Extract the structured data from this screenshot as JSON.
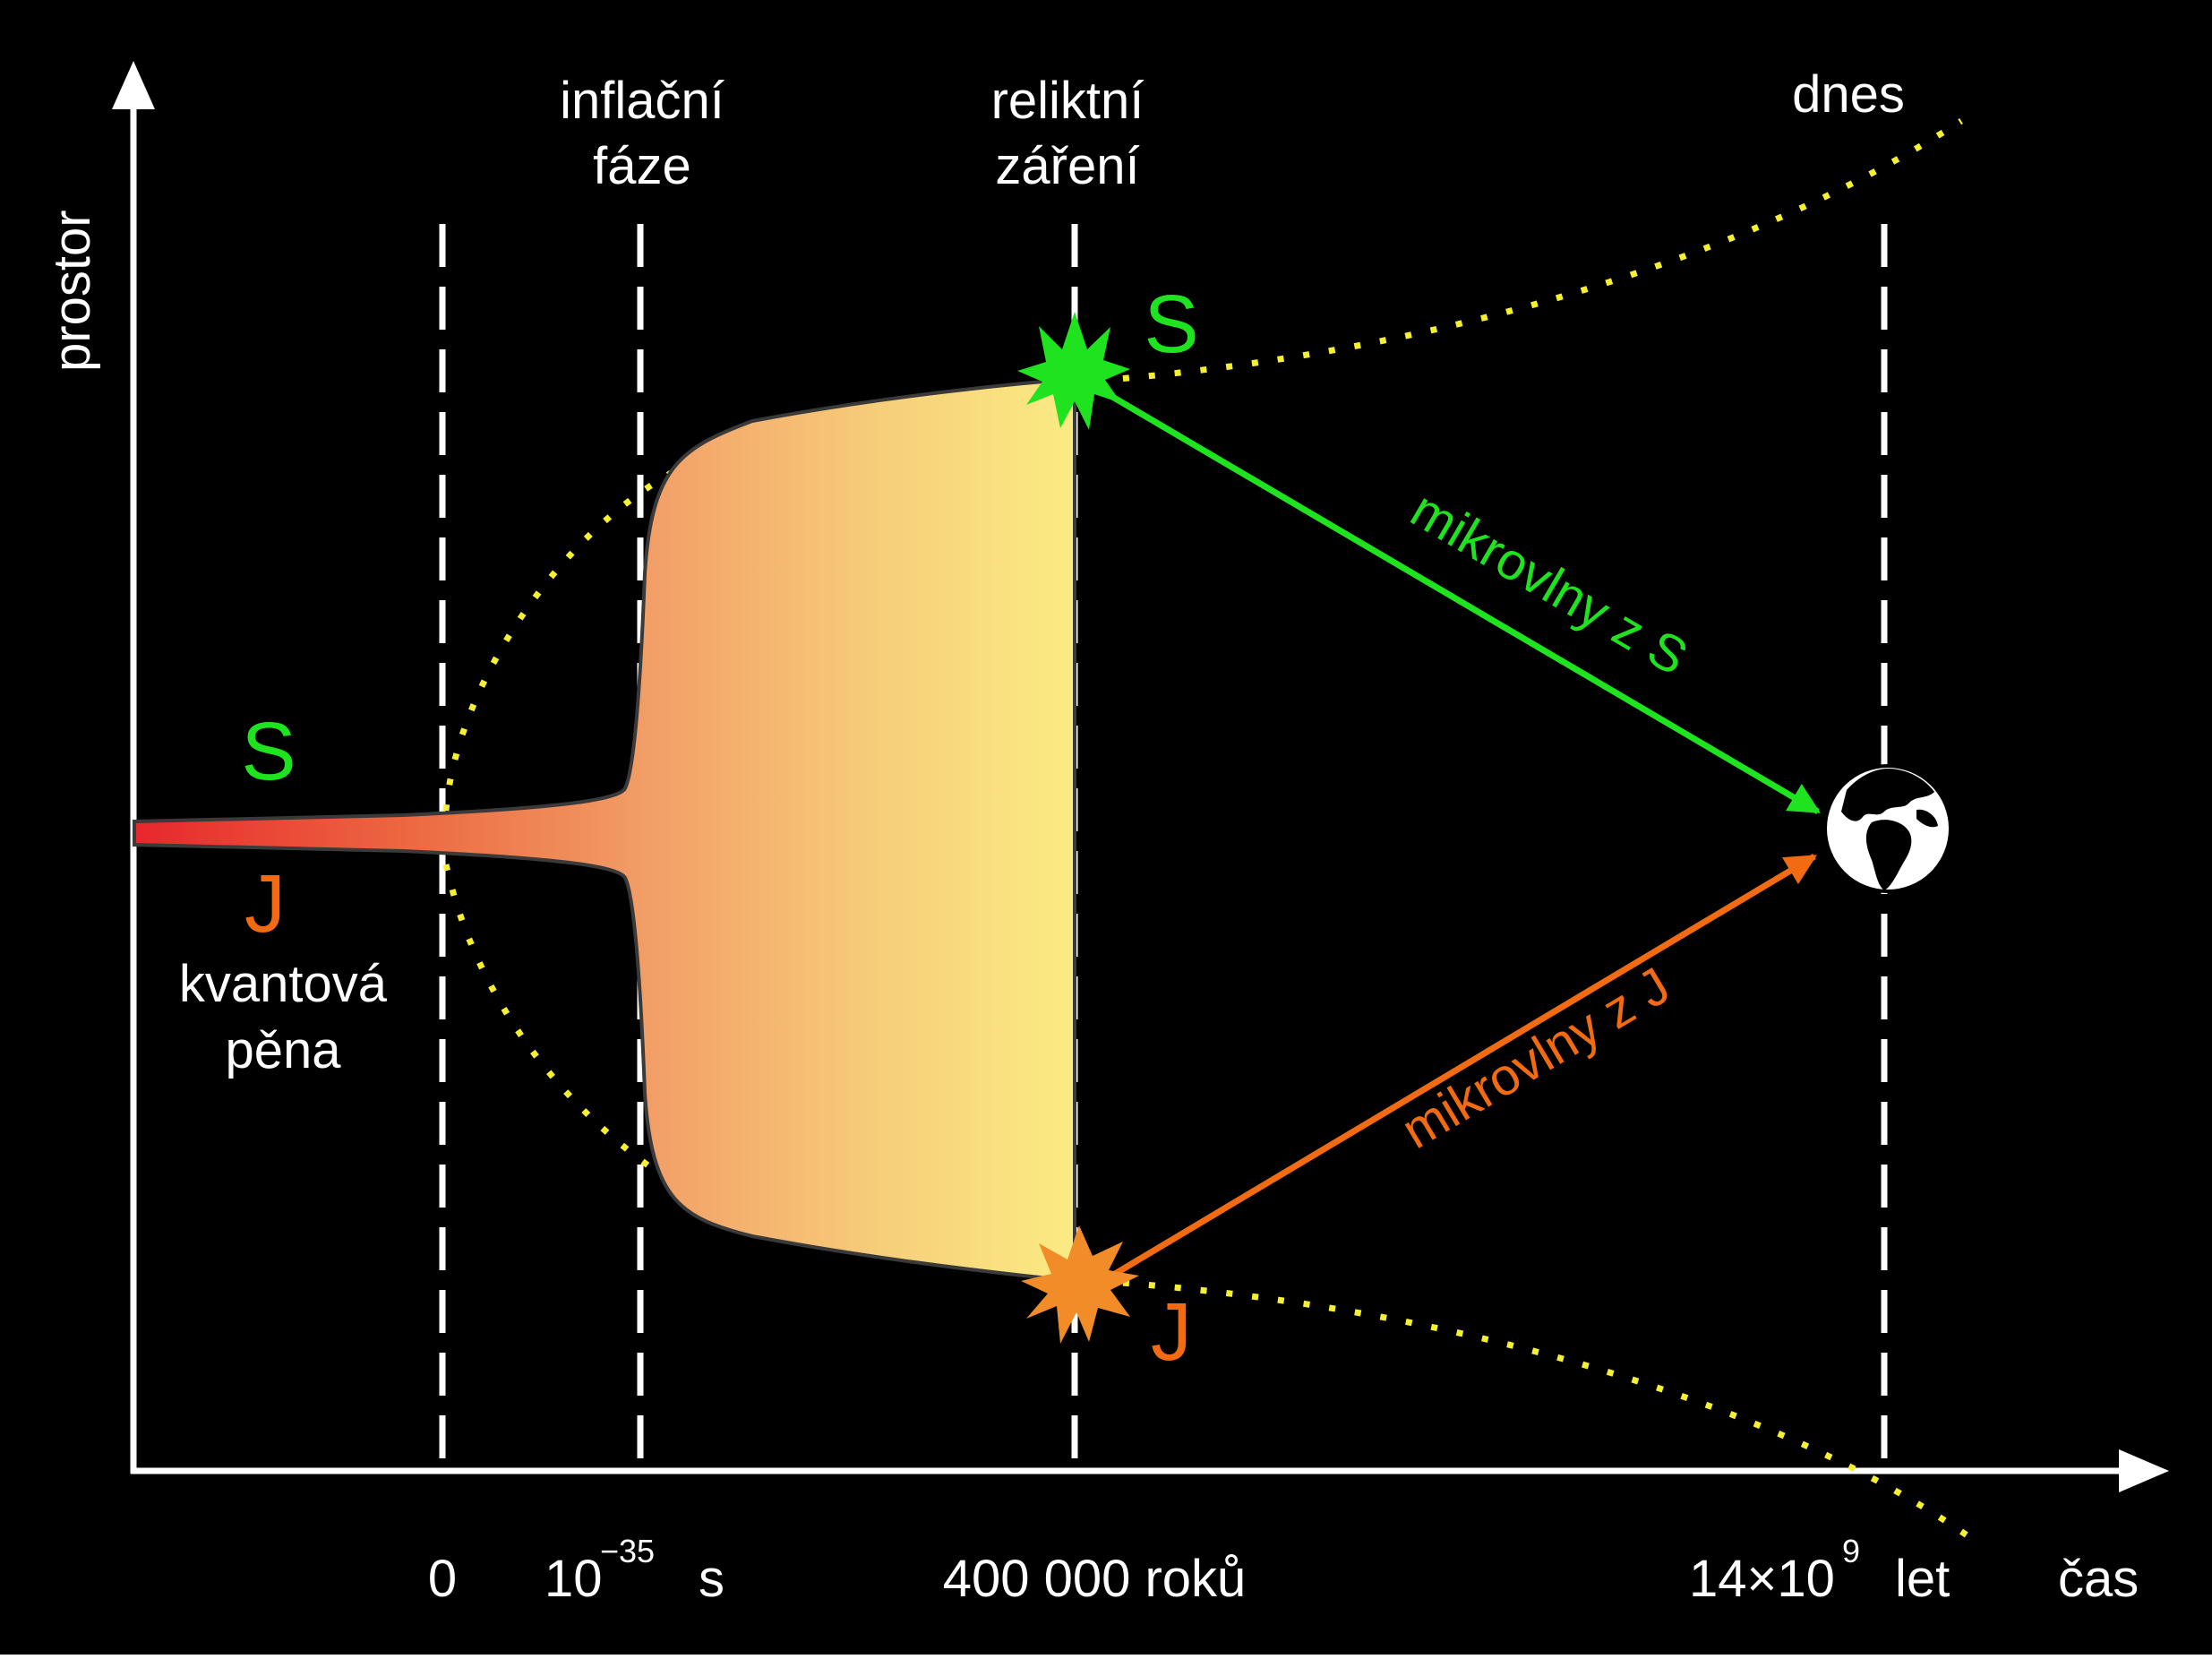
{
  "axes": {
    "y_label": "prostor",
    "x_label": "čas"
  },
  "phases": {
    "inflation": {
      "line1": "inflační",
      "line2": "fáze"
    },
    "relic": {
      "line1": "reliktní",
      "line2": "záření"
    },
    "today": "dnes"
  },
  "time_ticks": {
    "zero": "0",
    "planck_base": "10",
    "planck_exp": "−35",
    "planck_unit": "s",
    "recombination": "400 000 roků",
    "today_base": "14×10",
    "today_exp": "9",
    "today_unit": "let"
  },
  "points": {
    "north": "S",
    "south": "J",
    "foam_line1": "kvantová",
    "foam_line2": "pěna"
  },
  "signals": {
    "from_north": "mikrovlny z S",
    "from_south": "mikrovlny z J"
  },
  "colors": {
    "background": "#000000",
    "north": "#1ee31e",
    "south": "#f26b12",
    "foam_start": "#e8272c",
    "foam_end": "#fbeb83",
    "horizon": "#f5f032",
    "grid": "#ffffff"
  }
}
